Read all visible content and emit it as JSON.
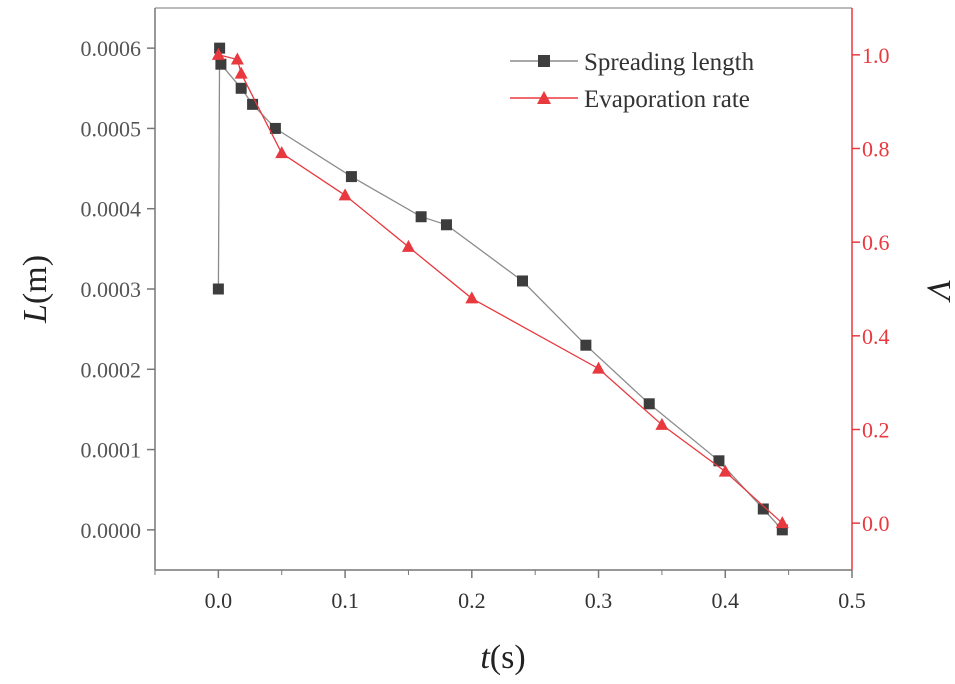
{
  "chart_data": {
    "type": "line",
    "x_axis": {
      "label_var": "t",
      "label_unit": "(s)",
      "range": [
        -0.05,
        0.5
      ],
      "ticks": [
        0.0,
        0.1,
        0.2,
        0.3,
        0.4,
        0.5
      ],
      "tick_labels": [
        "0.0",
        "0.1",
        "0.2",
        "0.3",
        "0.4",
        "0.5"
      ]
    },
    "y_left": {
      "label_var": "L",
      "label_unit": "(m)",
      "range": [
        -5e-05,
        0.00065
      ],
      "ticks": [
        0,
        0.0001,
        0.0002,
        0.0003,
        0.0004,
        0.0005,
        0.0006
      ],
      "tick_labels": [
        "0.0000",
        "0.0001",
        "0.0002",
        "0.0003",
        "0.0004",
        "0.0005",
        "0.0006"
      ]
    },
    "y_right": {
      "label_var": "V",
      "range": [
        -0.1,
        1.1
      ],
      "ticks": [
        0.0,
        0.2,
        0.4,
        0.6,
        0.8,
        1.0
      ],
      "tick_labels": [
        "0.0",
        "0.2",
        "0.4",
        "0.6",
        "0.8",
        "1.0"
      ],
      "color": "#e8393f"
    },
    "legend_position": "top-right",
    "series": [
      {
        "name": "Spreading length",
        "axis": "left",
        "marker": "square",
        "line_color": "#8c8c8c",
        "marker_color": "#3d3d3d",
        "x": [
          0.0,
          0.001,
          0.002,
          0.018,
          0.027,
          0.045,
          0.105,
          0.16,
          0.18,
          0.24,
          0.29,
          0.34,
          0.395,
          0.43,
          0.445
        ],
        "y": [
          0.0003,
          0.0006,
          0.00058,
          0.00055,
          0.00053,
          0.0005,
          0.00044,
          0.00039,
          0.00038,
          0.00031,
          0.00023,
          0.000157,
          8.6e-05,
          2.6e-05,
          0.0
        ]
      },
      {
        "name": "Evaporation rate",
        "axis": "right",
        "marker": "triangle",
        "line_color": "#e8393f",
        "marker_color": "#e8393f",
        "x": [
          0.0,
          0.015,
          0.018,
          0.05,
          0.1,
          0.15,
          0.2,
          0.3,
          0.35,
          0.4,
          0.445
        ],
        "y": [
          1.0,
          0.99,
          0.96,
          0.79,
          0.7,
          0.59,
          0.48,
          0.33,
          0.21,
          0.11,
          0.0
        ]
      }
    ]
  }
}
